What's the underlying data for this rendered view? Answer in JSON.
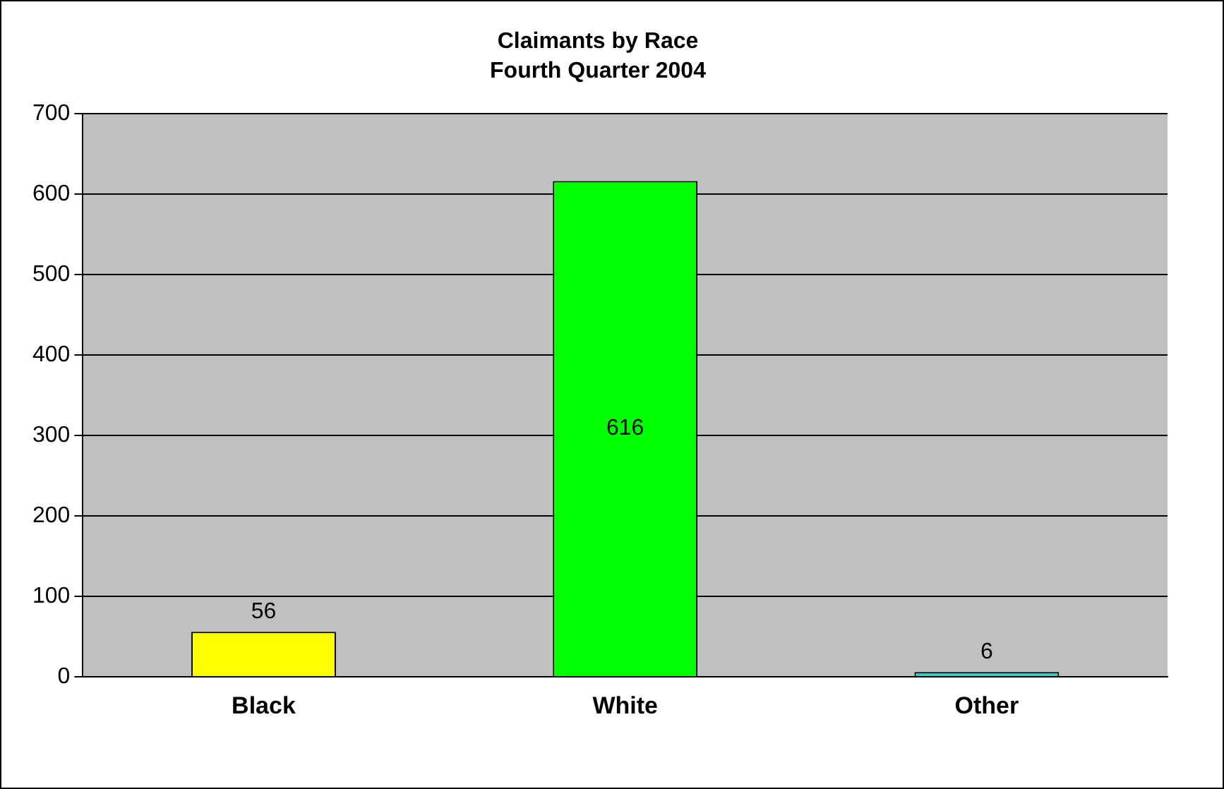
{
  "chart_data": {
    "type": "bar",
    "title": "Claimants by Race",
    "subtitle": "Fourth Quarter 2004",
    "categories": [
      "Black",
      "White",
      "Other"
    ],
    "values": [
      56,
      616,
      6
    ],
    "colors": [
      "#ffff00",
      "#00ff00",
      "#33cccc"
    ],
    "ylim": [
      0,
      700
    ],
    "yticks": [
      0,
      100,
      200,
      300,
      400,
      500,
      600,
      700
    ],
    "grid": "y",
    "data_labels": true,
    "legend": false
  }
}
